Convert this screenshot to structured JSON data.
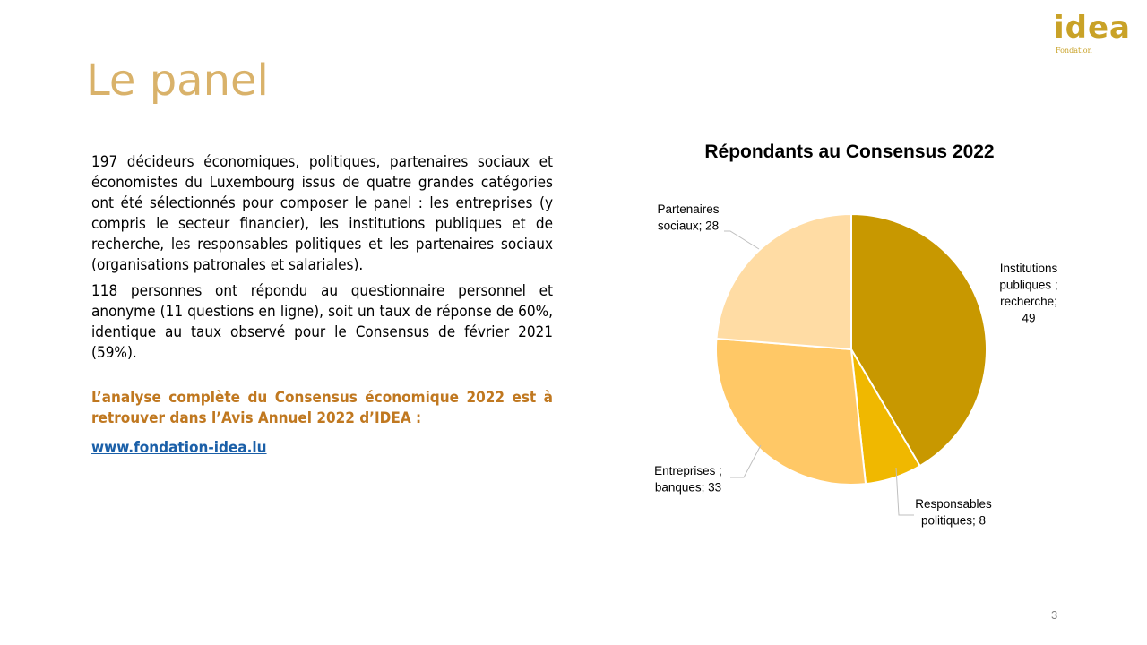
{
  "logo": {
    "word": "idea",
    "sub": "Fondation"
  },
  "title": "Le panel",
  "paragraphs": [
    "197 décideurs économiques, politiques, partenaires sociaux et économistes du Luxembourg issus de quatre grandes catégories ont été sélectionnés pour composer le panel : les entreprises (y compris le secteur financier), les institutions publiques et de recherche, les responsables politiques et les partenaires sociaux (organisations patronales et salariales).",
    "118 personnes ont répondu au questionnaire personnel et anonyme (11 questions en ligne), soit un taux de réponse de 60%, identique au taux observé pour le Consensus de février 2021 (59%)."
  ],
  "highlight": "L’analyse complète du Consensus économique 2022 est à retrouver dans l’Avis Annuel 2022 d’IDEA :",
  "link": "www.fondation-idea.lu",
  "page_number": "3",
  "chart_data": {
    "type": "pie",
    "title": "Répondants au Consensus 2022",
    "categories": [
      "Institutions publiques ; recherche",
      "Responsables politiques",
      "Entreprises ; banques",
      "Partenaires sociaux"
    ],
    "values": [
      49,
      8,
      33,
      28
    ],
    "labels": [
      [
        "Institutions",
        "publiques ;",
        "recherche;",
        "49"
      ],
      [
        "Responsables",
        "politiques; 8"
      ],
      [
        "Entreprises ;",
        "banques; 33"
      ],
      [
        "Partenaires",
        "sociaux; 28"
      ]
    ],
    "colors": [
      "#c89800",
      "#f0b800",
      "#ffc866",
      "#ffdca4"
    ]
  }
}
